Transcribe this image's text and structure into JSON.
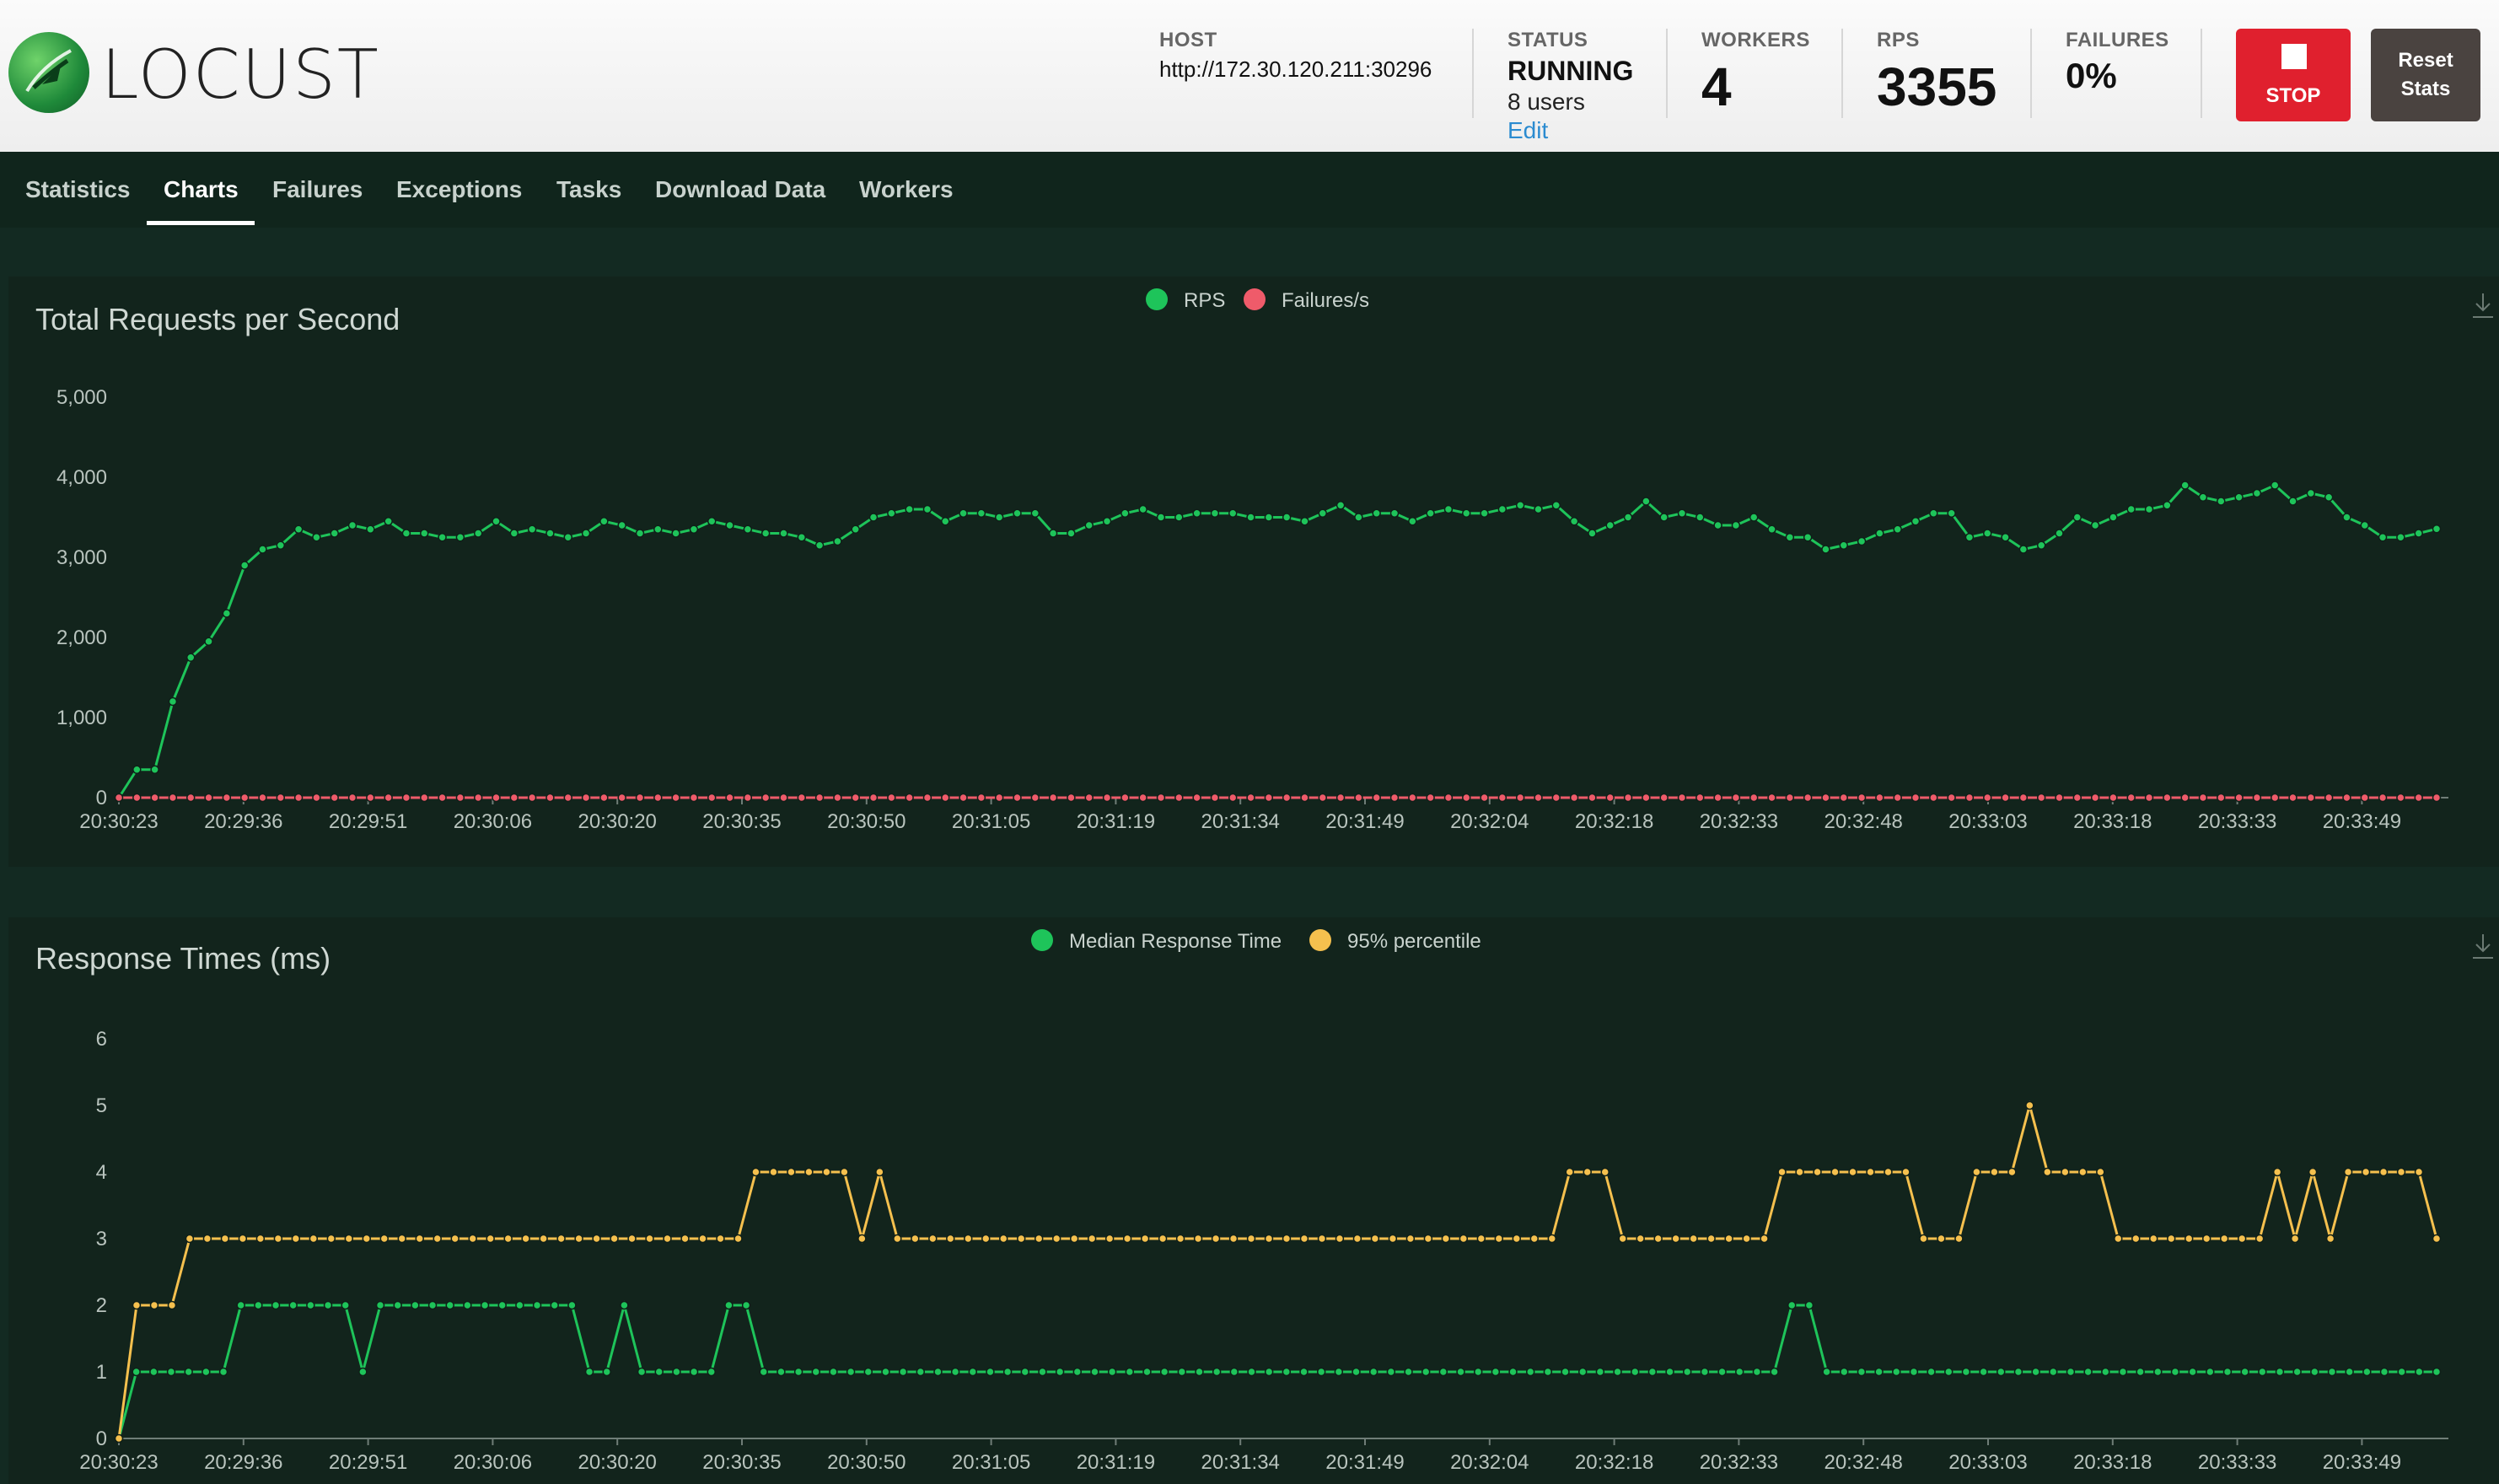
{
  "app": {
    "logo_text": "LOCUST"
  },
  "stats": {
    "host": {
      "label": "HOST",
      "value": "http://172.30.120.211:30296"
    },
    "status": {
      "label": "STATUS",
      "value": "RUNNING",
      "users": "8 users",
      "edit": "Edit"
    },
    "workers": {
      "label": "WORKERS",
      "value": "4"
    },
    "rps": {
      "label": "RPS",
      "value": "3355"
    },
    "failures": {
      "label": "FAILURES",
      "value": "0%"
    }
  },
  "buttons": {
    "stop": "STOP",
    "reset_line1": "Reset",
    "reset_line2": "Stats"
  },
  "nav": {
    "tabs": [
      "Statistics",
      "Charts",
      "Failures",
      "Exceptions",
      "Tasks",
      "Download Data",
      "Workers"
    ],
    "active": "Charts"
  },
  "colors": {
    "green": "#1ec45a",
    "red": "#ef5b6a",
    "yellow": "#f5c04e",
    "stop": "#e0202e"
  },
  "chart_data": [
    {
      "type": "line",
      "title": "Total Requests per Second",
      "x_ticks": [
        "20:30:23",
        "20:29:36",
        "20:29:51",
        "20:30:06",
        "20:30:20",
        "20:30:35",
        "20:30:50",
        "20:31:05",
        "20:31:19",
        "20:31:34",
        "20:31:49",
        "20:32:04",
        "20:32:18",
        "20:32:33",
        "20:32:48",
        "20:33:03",
        "20:33:18",
        "20:33:33",
        "20:33:49"
      ],
      "y_ticks": [
        "0",
        "1,000",
        "2,000",
        "3,000",
        "4,000",
        "5,000"
      ],
      "ylim": [
        0,
        5000
      ],
      "series": [
        {
          "name": "RPS",
          "color": "#1ec45a",
          "values": [
            0,
            350,
            350,
            1200,
            1750,
            1950,
            2300,
            2900,
            3100,
            3150,
            3350,
            3250,
            3300,
            3400,
            3350,
            3450,
            3300,
            3300,
            3250,
            3250,
            3300,
            3450,
            3300,
            3350,
            3300,
            3250,
            3300,
            3450,
            3400,
            3300,
            3350,
            3300,
            3350,
            3450,
            3400,
            3350,
            3300,
            3300,
            3250,
            3150,
            3200,
            3350,
            3500,
            3550,
            3600,
            3600,
            3450,
            3550,
            3550,
            3500,
            3550,
            3550,
            3300,
            3300,
            3400,
            3450,
            3550,
            3600,
            3500,
            3500,
            3550,
            3550,
            3550,
            3500,
            3500,
            3500,
            3450,
            3550,
            3650,
            3500,
            3550,
            3550,
            3450,
            3550,
            3600,
            3550,
            3550,
            3600,
            3650,
            3600,
            3650,
            3450,
            3300,
            3400,
            3500,
            3700,
            3500,
            3550,
            3500,
            3400,
            3400,
            3500,
            3350,
            3250,
            3250,
            3100,
            3150,
            3200,
            3300,
            3350,
            3450,
            3550,
            3550,
            3250,
            3300,
            3250,
            3100,
            3150,
            3300,
            3500,
            3400,
            3500,
            3600,
            3600,
            3650,
            3900,
            3750,
            3700,
            3750,
            3800,
            3900,
            3700,
            3800,
            3750,
            3500,
            3400,
            3250,
            3250,
            3300,
            3355
          ]
        },
        {
          "name": "Failures/s",
          "color": "#ef5b6a",
          "values_constant": 0
        }
      ]
    },
    {
      "type": "line",
      "title": "Response Times (ms)",
      "x_ticks": [
        "20:30:23",
        "20:29:36",
        "20:29:51",
        "20:30:06",
        "20:30:20",
        "20:30:35",
        "20:30:50",
        "20:31:05",
        "20:31:19",
        "20:31:34",
        "20:31:49",
        "20:32:04",
        "20:32:18",
        "20:32:33",
        "20:32:48",
        "20:33:03",
        "20:33:18",
        "20:33:33",
        "20:33:49"
      ],
      "y_ticks": [
        "0",
        "1",
        "2",
        "3",
        "4",
        "5",
        "6"
      ],
      "ylim": [
        0,
        6
      ],
      "series": [
        {
          "name": "Median Response Time",
          "color": "#1ec45a",
          "values": [
            0,
            1,
            1,
            1,
            1,
            1,
            1,
            2,
            2,
            2,
            2,
            2,
            2,
            2,
            1,
            2,
            2,
            2,
            2,
            2,
            2,
            2,
            2,
            2,
            2,
            2,
            2,
            1,
            1,
            2,
            1,
            1,
            1,
            1,
            1,
            2,
            2,
            1,
            1,
            1,
            1,
            1,
            1,
            1,
            1,
            1,
            1,
            1,
            1,
            1,
            1,
            1,
            1,
            1,
            1,
            1,
            1,
            1,
            1,
            1,
            1,
            1,
            1,
            1,
            1,
            1,
            1,
            1,
            1,
            1,
            1,
            1,
            1,
            1,
            1,
            1,
            1,
            1,
            1,
            1,
            1,
            1,
            1,
            1,
            1,
            1,
            1,
            1,
            1,
            1,
            1,
            1,
            1,
            1,
            1,
            1,
            2,
            2,
            1,
            1,
            1,
            1,
            1,
            1,
            1,
            1,
            1,
            1,
            1,
            1,
            1,
            1,
            1,
            1,
            1,
            1,
            1,
            1,
            1,
            1,
            1,
            1,
            1,
            1,
            1,
            1,
            1,
            1,
            1,
            1,
            1,
            1,
            1,
            1
          ]
        },
        {
          "name": "95% percentile",
          "color": "#f5c04e",
          "values": [
            0,
            2,
            2,
            2,
            3,
            3,
            3,
            3,
            3,
            3,
            3,
            3,
            3,
            3,
            3,
            3,
            3,
            3,
            3,
            3,
            3,
            3,
            3,
            3,
            3,
            3,
            3,
            3,
            3,
            3,
            3,
            3,
            3,
            3,
            3,
            3,
            4,
            4,
            4,
            4,
            4,
            4,
            3,
            4,
            3,
            3,
            3,
            3,
            3,
            3,
            3,
            3,
            3,
            3,
            3,
            3,
            3,
            3,
            3,
            3,
            3,
            3,
            3,
            3,
            3,
            3,
            3,
            3,
            3,
            3,
            3,
            3,
            3,
            3,
            3,
            3,
            3,
            3,
            3,
            3,
            3,
            3,
            4,
            4,
            4,
            3,
            3,
            3,
            3,
            3,
            3,
            3,
            3,
            3,
            4,
            4,
            4,
            4,
            4,
            4,
            4,
            4,
            3,
            3,
            3,
            4,
            4,
            4,
            5,
            4,
            4,
            4,
            4,
            3,
            3,
            3,
            3,
            3,
            3,
            3,
            3,
            3,
            4,
            3,
            4,
            3,
            4,
            4,
            4,
            4,
            4,
            3
          ]
        }
      ]
    }
  ]
}
